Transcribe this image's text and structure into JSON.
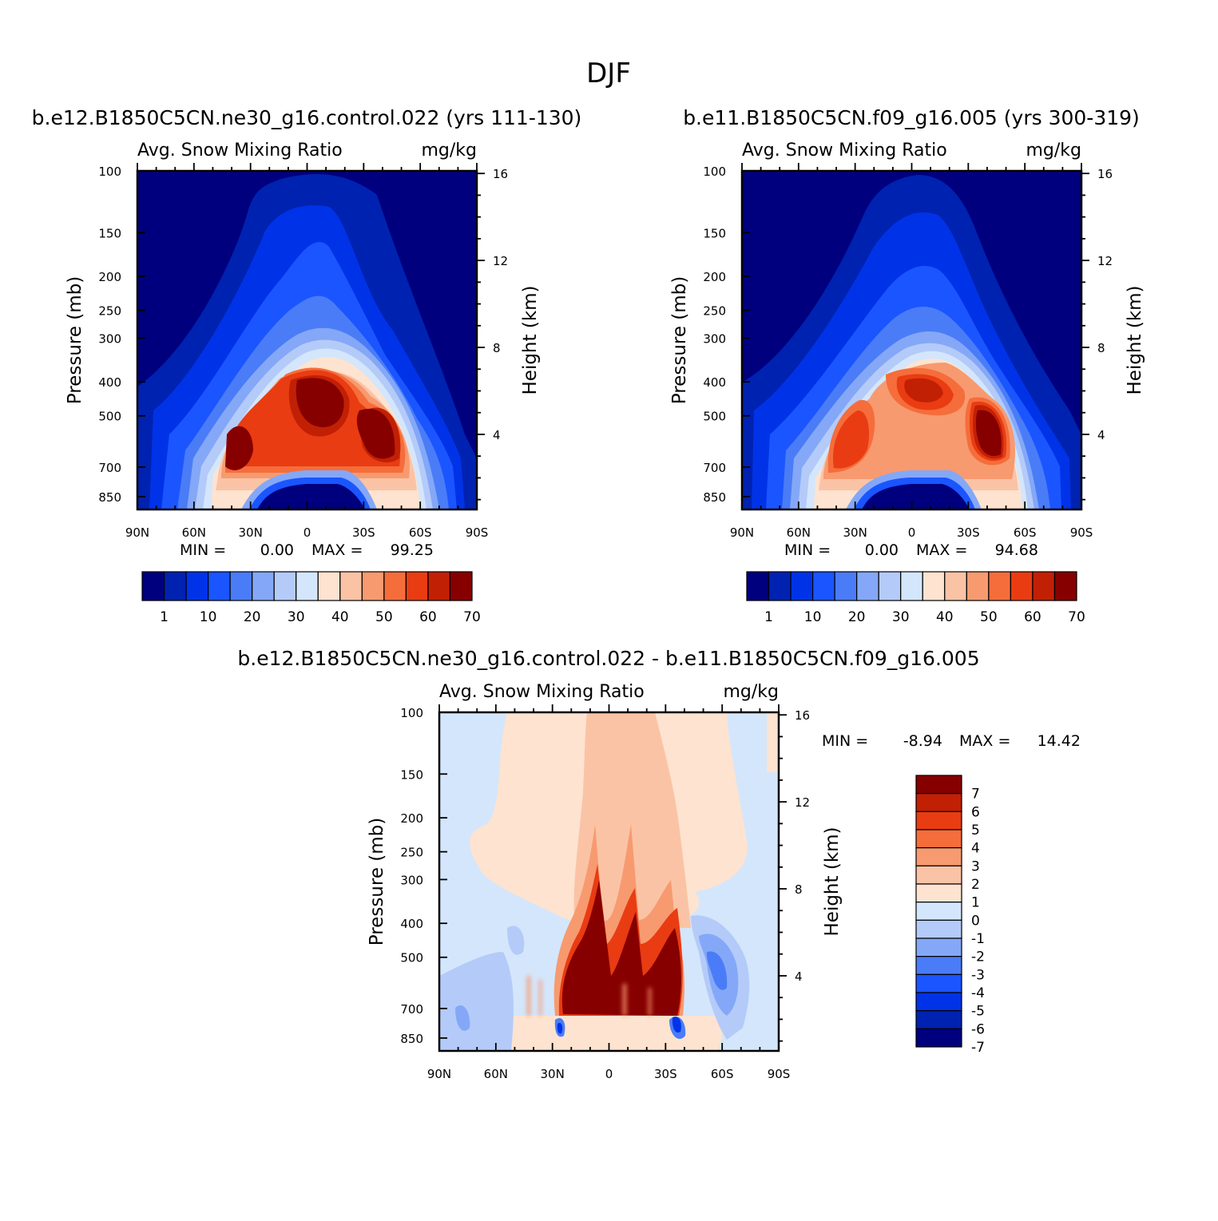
{
  "main_title": "DJF",
  "chart_data": [
    {
      "type": "heatmap",
      "id": "p1",
      "title": "b.e12.B1850C5CN.ne30_g16.control.022 (yrs 111-130)",
      "subtitle_left": "Avg. Snow Mixing Ratio",
      "subtitle_right": "mg/kg",
      "xlabel": "",
      "ylabel": "Pressure (mb)",
      "y2label": "Height (km)",
      "x_ticks": [
        "90N",
        "60N",
        "30N",
        "0",
        "30S",
        "60S",
        "90S"
      ],
      "y_ticks": [
        "100",
        "150",
        "200",
        "250",
        "300",
        "400",
        "500",
        "700",
        "850"
      ],
      "y2_ticks": [
        "16",
        "12",
        "8",
        "4"
      ],
      "xlim": [
        90,
        -90
      ],
      "ylim": [
        100,
        925
      ],
      "min_label": "MIN =",
      "min_value": "0.00",
      "max_label": "MAX =",
      "max_value": "99.25",
      "colorbar_levels": [
        "1",
        "10",
        "20",
        "30",
        "40",
        "50",
        "60",
        "70"
      ],
      "colorbar_colors": [
        "#00007f",
        "#0022b0",
        "#0033e8",
        "#1a55ff",
        "#4a7cf7",
        "#84a8f7",
        "#b4cbf9",
        "#d4e6fb",
        "#fde3d0",
        "#fbc3a5",
        "#f79a70",
        "#f56d3b",
        "#e93c12",
        "#c22005",
        "#870000"
      ],
      "max_region": "65S-30N at 400-850 mb",
      "peaks_mg_per_kg": [
        {
          "lat": "30N",
          "pressure": 650,
          "value": 70
        },
        {
          "lat": "10S",
          "pressure": 430,
          "value": 99
        },
        {
          "lat": "40S",
          "pressure": 600,
          "value": 80
        }
      ]
    },
    {
      "type": "heatmap",
      "id": "p2",
      "title": "b.e11.B1850C5CN.f09_g16.005 (yrs 300-319)",
      "subtitle_left": "Avg. Snow Mixing Ratio",
      "subtitle_right": "mg/kg",
      "xlabel": "",
      "ylabel": "Pressure (mb)",
      "y2label": "Height (km)",
      "x_ticks": [
        "90N",
        "60N",
        "30N",
        "0",
        "30S",
        "60S",
        "90S"
      ],
      "y_ticks": [
        "100",
        "150",
        "200",
        "250",
        "300",
        "400",
        "500",
        "700",
        "850"
      ],
      "y2_ticks": [
        "16",
        "12",
        "8",
        "4"
      ],
      "xlim": [
        90,
        -90
      ],
      "ylim": [
        100,
        925
      ],
      "min_label": "MIN =",
      "min_value": "0.00",
      "max_label": "MAX =",
      "max_value": "94.68",
      "colorbar_levels": [
        "1",
        "10",
        "20",
        "30",
        "40",
        "50",
        "60",
        "70"
      ],
      "colorbar_colors": [
        "#00007f",
        "#0022b0",
        "#0033e8",
        "#1a55ff",
        "#4a7cf7",
        "#84a8f7",
        "#b4cbf9",
        "#d4e6fb",
        "#fde3d0",
        "#fbc3a5",
        "#f79a70",
        "#f56d3b",
        "#e93c12",
        "#c22005",
        "#870000"
      ],
      "peaks_mg_per_kg": [
        {
          "lat": "30N",
          "pressure": 650,
          "value": 65
        },
        {
          "lat": "0",
          "pressure": 420,
          "value": 85
        },
        {
          "lat": "40S",
          "pressure": 600,
          "value": 94
        }
      ]
    },
    {
      "type": "heatmap",
      "id": "p3",
      "title": "b.e12.B1850C5CN.ne30_g16.control.022 - b.e11.B1850C5CN.f09_g16.005",
      "subtitle_left": "Avg. Snow Mixing Ratio",
      "subtitle_right": "mg/kg",
      "xlabel": "",
      "ylabel": "Pressure (mb)",
      "y2label": "Height (km)",
      "x_ticks": [
        "90N",
        "60N",
        "30N",
        "0",
        "30S",
        "60S",
        "90S"
      ],
      "y_ticks": [
        "100",
        "150",
        "200",
        "250",
        "300",
        "400",
        "500",
        "700",
        "850"
      ],
      "y2_ticks": [
        "16",
        "12",
        "8",
        "4"
      ],
      "xlim": [
        90,
        -90
      ],
      "ylim": [
        100,
        925
      ],
      "min_label": "MIN =",
      "min_value": "-8.94",
      "max_label": "MAX =",
      "max_value": "14.42",
      "colorbar_levels": [
        "7",
        "6",
        "5",
        "4",
        "3",
        "2",
        "1",
        "0",
        "-1",
        "-2",
        "-3",
        "-4",
        "-5",
        "-6",
        "-7"
      ],
      "colorbar_colors": [
        "#870000",
        "#c22005",
        "#e93c12",
        "#f56d3b",
        "#f79a70",
        "#fbc3a5",
        "#fde3d0",
        "#d4e6fb",
        "#b4cbf9",
        "#84a8f7",
        "#4a7cf7",
        "#1a55ff",
        "#0033e8",
        "#0022b0",
        "#00007f"
      ]
    }
  ]
}
